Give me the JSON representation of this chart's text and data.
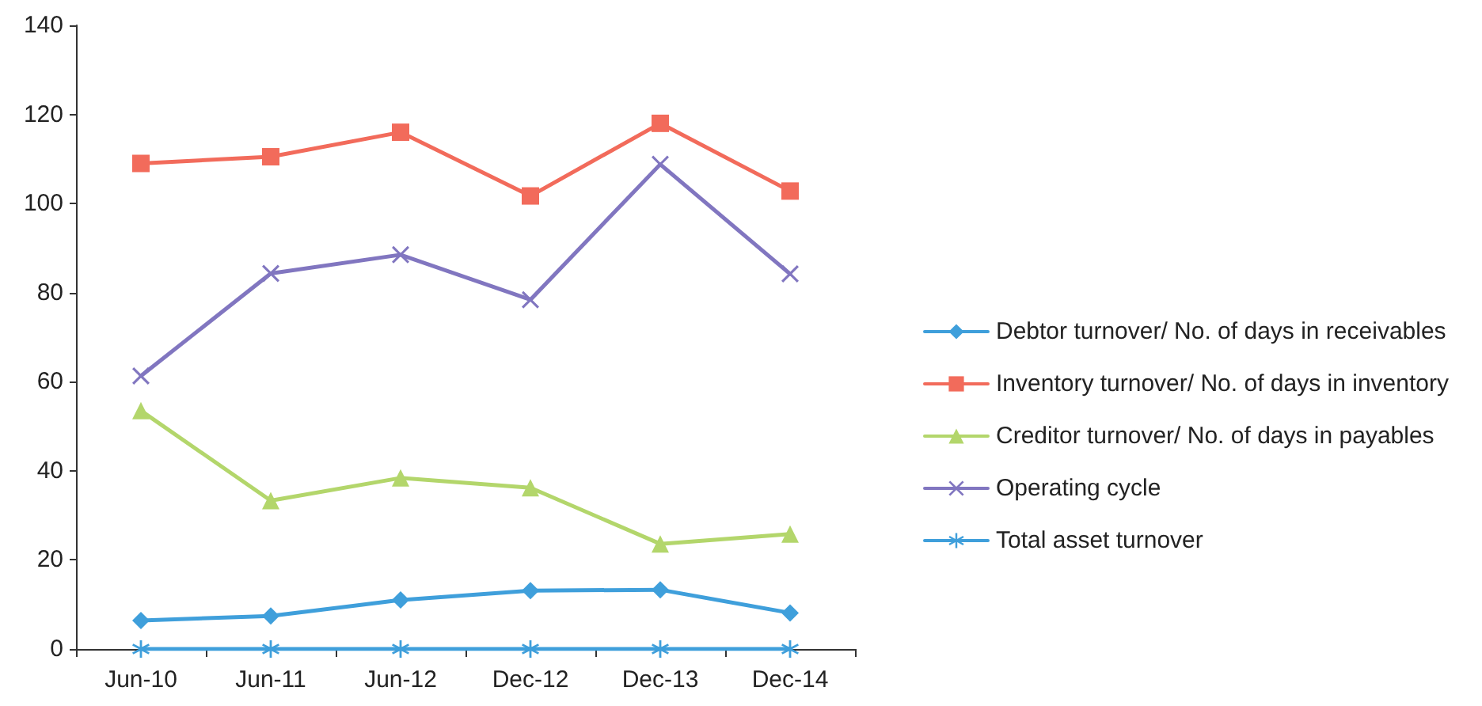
{
  "chart_data": {
    "type": "line",
    "categories": [
      "Jun-10",
      "Jun-11",
      "Jun-12",
      "Dec-12",
      "Dec-13",
      "Dec-14"
    ],
    "series": [
      {
        "name": "Debtor turnover/ No. of days in receivables",
        "color": "#3f9fdb",
        "marker": "diamond",
        "values": [
          6.4,
          7.4,
          11,
          13.1,
          13.3,
          8.1
        ]
      },
      {
        "name": "Inventory turnover/ No. of days in inventory",
        "color": "#f26b5b",
        "marker": "square",
        "values": [
          109,
          110.5,
          116,
          101.7,
          118,
          102.8
        ]
      },
      {
        "name": "Creditor turnover/ No. of days in payables",
        "color": "#b3d66b",
        "marker": "triangle",
        "values": [
          53.5,
          33.3,
          38.4,
          36.2,
          23.6,
          25.8
        ]
      },
      {
        "name": "Operating cycle",
        "color": "#8176c0",
        "marker": "cross",
        "values": [
          61.3,
          84.3,
          88.5,
          78.4,
          108.8,
          84.2
        ]
      },
      {
        "name": "Total asset turnover",
        "color": "#3f9fdb",
        "marker": "star",
        "values": [
          0,
          0,
          0,
          0,
          0,
          0
        ]
      }
    ],
    "ylim": [
      0,
      140
    ],
    "yticks": [
      0,
      20,
      40,
      60,
      80,
      100,
      120,
      140
    ],
    "grid": false,
    "legend": "right",
    "line_style": "solid"
  }
}
